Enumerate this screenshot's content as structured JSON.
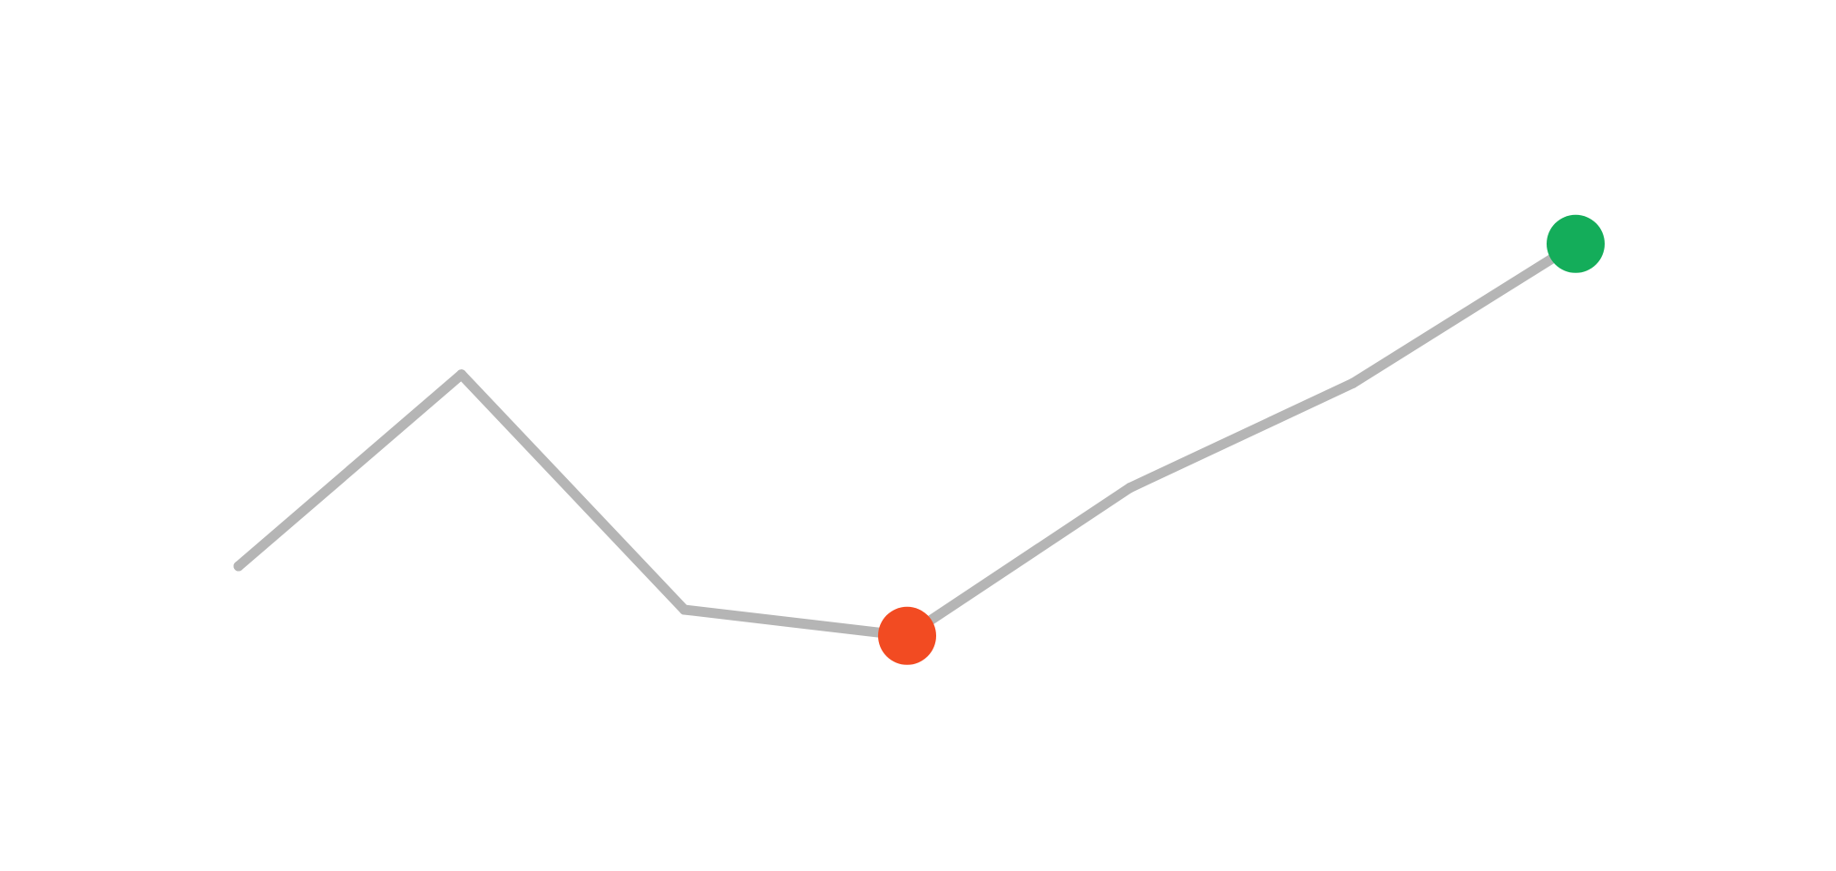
{
  "chart_data": {
    "type": "line",
    "title": "",
    "xlabel": "",
    "ylabel": "",
    "x": [
      0,
      1,
      2,
      3,
      4,
      5,
      6
    ],
    "values": [
      35,
      57,
      30,
      27,
      44,
      56,
      72
    ],
    "xlim": [
      0,
      6
    ],
    "ylim": [
      0,
      100
    ],
    "grid": false,
    "axes_visible": false,
    "highlights": [
      {
        "kind": "min",
        "index": 3,
        "color": "#f24b22"
      },
      {
        "kind": "max",
        "index": 6,
        "color": "#14ad5a"
      }
    ],
    "line_color": "#b5b5b5"
  }
}
